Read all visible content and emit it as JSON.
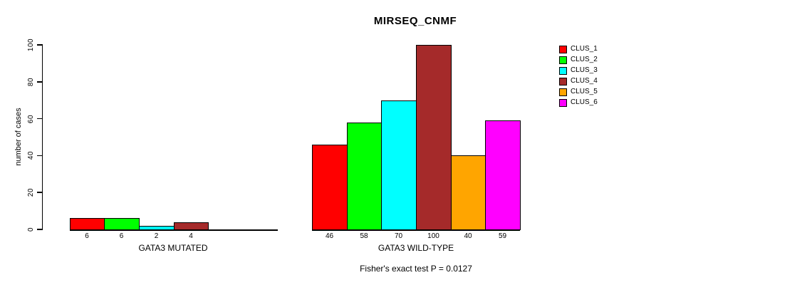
{
  "title": "MIRSEQ_CNMF",
  "ylabel": "number of cases",
  "annotation": "Fisher's exact test P = 0.0127",
  "colors": {
    "background": "#FFFFFF",
    "axis": "#000000",
    "text": "#000000"
  },
  "legend": {
    "position": "right",
    "items": [
      {
        "label": "CLUS_1",
        "color": "#FF0000"
      },
      {
        "label": "CLUS_2",
        "color": "#00FF00"
      },
      {
        "label": "CLUS_3",
        "color": "#00FFFF"
      },
      {
        "label": "CLUS_4",
        "color": "#A52A2A"
      },
      {
        "label": "CLUS_5",
        "color": "#FFA500"
      },
      {
        "label": "CLUS_6",
        "color": "#FF00FF"
      }
    ]
  },
  "chart_data": {
    "type": "bar",
    "title": "MIRSEQ_CNMF",
    "xlabel": "",
    "ylabel": "number of cases",
    "ylim": [
      0,
      100
    ],
    "yticks": [
      0,
      20,
      40,
      60,
      80,
      100
    ],
    "grid": false,
    "legend_position": "right",
    "clusters": [
      "CLUS_1",
      "CLUS_2",
      "CLUS_3",
      "CLUS_4",
      "CLUS_5",
      "CLUS_6"
    ],
    "cluster_colors": [
      "#FF0000",
      "#00FF00",
      "#00FFFF",
      "#A52A2A",
      "#FFA500",
      "#FF00FF"
    ],
    "groups": [
      {
        "label": "GATA3 MUTATED",
        "values": [
          6,
          6,
          2,
          4,
          0,
          0
        ],
        "bar_labels": [
          "6",
          "6",
          "2",
          "4",
          "",
          ""
        ]
      },
      {
        "label": "GATA3 WILD-TYPE",
        "values": [
          46,
          58,
          70,
          100,
          40,
          59
        ],
        "bar_labels": [
          "46",
          "58",
          "70",
          "100",
          "40",
          "59"
        ]
      }
    ],
    "annotation": "Fisher's exact test P = 0.0127"
  }
}
